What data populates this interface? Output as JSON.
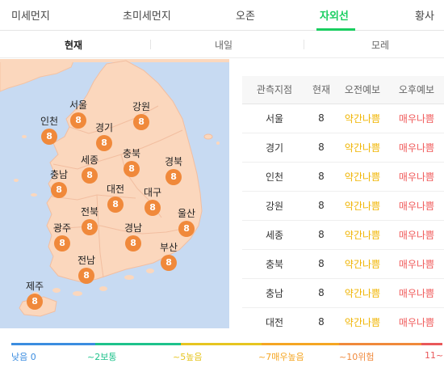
{
  "top_tabs": [
    {
      "label": "미세먼지",
      "active": false
    },
    {
      "label": "초미세먼지",
      "active": false
    },
    {
      "label": "오존",
      "active": false
    },
    {
      "label": "자외선",
      "active": true
    },
    {
      "label": "황사",
      "active": false
    }
  ],
  "sub_tabs": [
    {
      "label": "현재",
      "active": true
    },
    {
      "label": "내일",
      "active": false
    },
    {
      "label": "모레",
      "active": false
    }
  ],
  "map": {
    "regions": [
      {
        "name": "서울",
        "value": "8"
      },
      {
        "name": "인천",
        "value": "8"
      },
      {
        "name": "경기",
        "value": "8"
      },
      {
        "name": "강원",
        "value": "8"
      },
      {
        "name": "세종",
        "value": "8"
      },
      {
        "name": "충북",
        "value": "8"
      },
      {
        "name": "경북",
        "value": "8"
      },
      {
        "name": "충남",
        "value": "8"
      },
      {
        "name": "대전",
        "value": "8"
      },
      {
        "name": "대구",
        "value": "8"
      },
      {
        "name": "전북",
        "value": "8"
      },
      {
        "name": "광주",
        "value": "8"
      },
      {
        "name": "경남",
        "value": "8"
      },
      {
        "name": "울산",
        "value": "8"
      },
      {
        "name": "부산",
        "value": "8"
      },
      {
        "name": "전남",
        "value": "8"
      },
      {
        "name": "제주",
        "value": "8"
      }
    ],
    "land_color": "#fbd7bd",
    "sea_color": "#c7daf2",
    "badge_color": "#f0893b"
  },
  "table": {
    "headers": [
      "관측지점",
      "현재",
      "오전예보",
      "오후예보"
    ],
    "rows": [
      {
        "station": "서울",
        "now": "8",
        "am": "약간나쁨",
        "pm": "매우나쁨"
      },
      {
        "station": "경기",
        "now": "8",
        "am": "약간나쁨",
        "pm": "매우나쁨"
      },
      {
        "station": "인천",
        "now": "8",
        "am": "약간나쁨",
        "pm": "매우나쁨"
      },
      {
        "station": "강원",
        "now": "8",
        "am": "약간나쁨",
        "pm": "매우나쁨"
      },
      {
        "station": "세종",
        "now": "8",
        "am": "약간나쁨",
        "pm": "매우나쁨"
      },
      {
        "station": "충북",
        "now": "8",
        "am": "약간나쁨",
        "pm": "매우나쁨"
      },
      {
        "station": "충남",
        "now": "8",
        "am": "약간나쁨",
        "pm": "매우나쁨"
      },
      {
        "station": "대전",
        "now": "8",
        "am": "약간나쁨",
        "pm": "매우나쁨"
      }
    ],
    "am_color": "#f0b400",
    "pm_color": "#f05a5a"
  },
  "legend": {
    "items": [
      {
        "label": "낮음 0",
        "color": "#3b8de0"
      },
      {
        "label": "~2보통",
        "color": "#1ec28b"
      },
      {
        "label": "~5높음",
        "color": "#e6c520"
      },
      {
        "label": "~7매우높음",
        "color": "#f5a623"
      },
      {
        "label": "~10위험",
        "color": "#f0893b"
      },
      {
        "label": "11~",
        "color": "#e9585a"
      }
    ]
  }
}
